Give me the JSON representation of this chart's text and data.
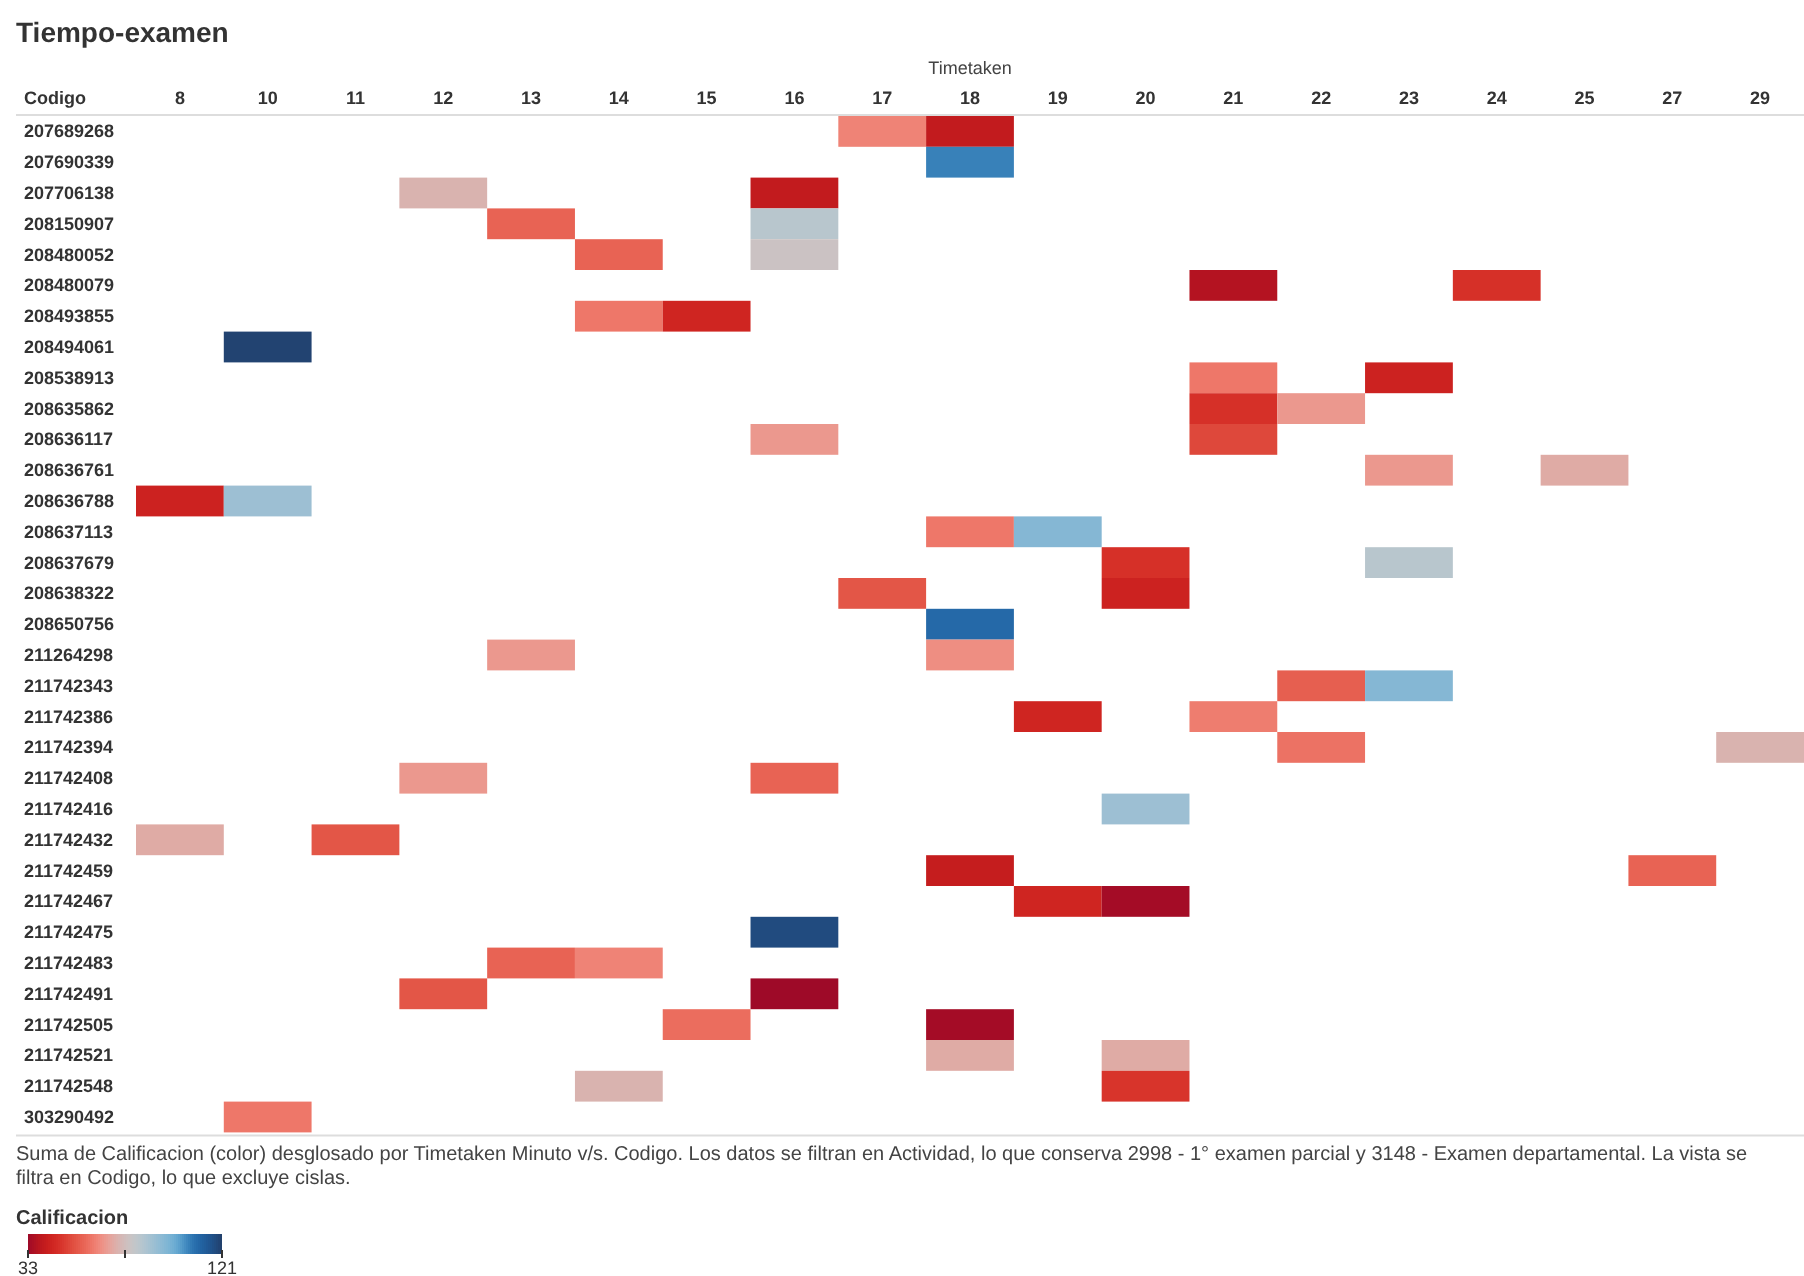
{
  "chart_data": {
    "type": "heatmap",
    "title": "Tiempo-examen",
    "xlabel": "Timetaken",
    "ylabel": "Codigo",
    "clabel": "Calificacion",
    "annotations": [
      "Suma de Calificacion (color) desglosado por Timetaken Minuto v/s. Codigo. Los datos se filtran en Actividad, lo que conserva 2998 - 1° examen parcial y 3148 - Examen departamental. La vista se filtra en Codigo, lo que excluye cislas."
    ],
    "categories": [
      "8",
      "10",
      "11",
      "12",
      "13",
      "14",
      "15",
      "16",
      "17",
      "18",
      "19",
      "20",
      "21",
      "22",
      "23",
      "24",
      "25",
      "27",
      "29"
    ],
    "y_categories": [
      "207689268",
      "207690339",
      "207706138",
      "208150907",
      "208480052",
      "208480079",
      "208493855",
      "208494061",
      "208538913",
      "208635862",
      "208636117",
      "208636761",
      "208636788",
      "208637113",
      "208637679",
      "208638322",
      "208650756",
      "211264298",
      "211742343",
      "211742386",
      "211742394",
      "211742408",
      "211742416",
      "211742432",
      "211742459",
      "211742467",
      "211742475",
      "211742483",
      "211742491",
      "211742505",
      "211742521",
      "211742548",
      "303290492"
    ],
    "clim": [
      33,
      121
    ],
    "cticks": [
      33,
      {
        "value": 77,
        "label": null
      },
      121
    ],
    "cells": [
      [
        null,
        null,
        null,
        null,
        null,
        null,
        null,
        null,
        64,
        40,
        null,
        null,
        null,
        null,
        null,
        null,
        null,
        null,
        null
      ],
      [
        null,
        null,
        null,
        null,
        null,
        null,
        null,
        null,
        null,
        106,
        null,
        null,
        null,
        null,
        null,
        null,
        null,
        null,
        null
      ],
      [
        null,
        null,
        null,
        74,
        null,
        null,
        null,
        40,
        null,
        null,
        null,
        null,
        null,
        null,
        null,
        null,
        null,
        null,
        null
      ],
      [
        null,
        null,
        null,
        null,
        58,
        null,
        null,
        84,
        null,
        null,
        null,
        null,
        null,
        null,
        null,
        null,
        null,
        null,
        null
      ],
      [
        null,
        null,
        null,
        null,
        null,
        58,
        null,
        79,
        null,
        null,
        null,
        null,
        null,
        null,
        null,
        null,
        null,
        null,
        null
      ],
      [
        null,
        null,
        null,
        null,
        null,
        null,
        null,
        null,
        null,
        null,
        null,
        null,
        37,
        null,
        null,
        47,
        null,
        null,
        null
      ],
      [
        null,
        null,
        null,
        null,
        null,
        62,
        44,
        null,
        null,
        null,
        null,
        null,
        null,
        null,
        null,
        null,
        null,
        null,
        null
      ],
      [
        null,
        120,
        null,
        null,
        null,
        null,
        null,
        null,
        null,
        null,
        null,
        null,
        null,
        null,
        null,
        null,
        null,
        null,
        null
      ],
      [
        null,
        null,
        null,
        null,
        null,
        null,
        null,
        null,
        null,
        null,
        null,
        null,
        62,
        null,
        43,
        null,
        null,
        null,
        null
      ],
      [
        null,
        null,
        null,
        null,
        null,
        null,
        null,
        null,
        null,
        null,
        null,
        null,
        47,
        68,
        null,
        null,
        null,
        null,
        null
      ],
      [
        null,
        null,
        null,
        null,
        null,
        null,
        null,
        68,
        null,
        null,
        null,
        null,
        52,
        null,
        null,
        null,
        null,
        null,
        null
      ],
      [
        null,
        null,
        null,
        null,
        null,
        null,
        null,
        null,
        null,
        null,
        null,
        null,
        null,
        null,
        68,
        null,
        72,
        null,
        null
      ],
      [
        43,
        90,
        null,
        null,
        null,
        null,
        null,
        null,
        null,
        null,
        null,
        null,
        null,
        null,
        null,
        null,
        null,
        null,
        null
      ],
      [
        null,
        null,
        null,
        null,
        null,
        null,
        null,
        null,
        null,
        62,
        95,
        null,
        null,
        null,
        null,
        null,
        null,
        null,
        null
      ],
      [
        null,
        null,
        null,
        null,
        null,
        null,
        null,
        null,
        null,
        null,
        null,
        47,
        null,
        null,
        84,
        null,
        null,
        null,
        null
      ],
      [
        null,
        null,
        null,
        null,
        null,
        null,
        null,
        null,
        55,
        null,
        null,
        43,
        null,
        null,
        null,
        null,
        null,
        null,
        null
      ],
      [
        null,
        null,
        null,
        null,
        null,
        null,
        null,
        null,
        null,
        110,
        null,
        null,
        null,
        null,
        null,
        null,
        null,
        null,
        null
      ],
      [
        null,
        null,
        null,
        null,
        68,
        null,
        null,
        null,
        null,
        66,
        null,
        null,
        null,
        null,
        null,
        null,
        null,
        null,
        null
      ],
      [
        null,
        null,
        null,
        null,
        null,
        null,
        null,
        null,
        null,
        null,
        null,
        null,
        null,
        57,
        95,
        null,
        null,
        null,
        null
      ],
      [
        null,
        null,
        null,
        null,
        null,
        null,
        null,
        null,
        null,
        null,
        44,
        null,
        63,
        null,
        null,
        null,
        null,
        null,
        null
      ],
      [
        null,
        null,
        null,
        null,
        null,
        null,
        null,
        null,
        null,
        null,
        null,
        null,
        null,
        61,
        null,
        null,
        null,
        null,
        74
      ],
      [
        null,
        null,
        null,
        68,
        null,
        null,
        null,
        58,
        null,
        null,
        null,
        null,
        null,
        null,
        null,
        null,
        null,
        null,
        null
      ],
      [
        null,
        null,
        null,
        null,
        null,
        null,
        null,
        null,
        null,
        null,
        null,
        90,
        null,
        null,
        null,
        null,
        null,
        null,
        null
      ],
      [
        72,
        null,
        55,
        null,
        null,
        null,
        null,
        null,
        null,
        null,
        null,
        null,
        null,
        null,
        null,
        null,
        null,
        null,
        null
      ],
      [
        null,
        null,
        null,
        null,
        null,
        null,
        null,
        null,
        null,
        41,
        null,
        null,
        null,
        null,
        null,
        null,
        null,
        58,
        null
      ],
      [
        null,
        null,
        null,
        null,
        null,
        null,
        null,
        null,
        null,
        null,
        44,
        34,
        null,
        null,
        null,
        null,
        null,
        null,
        null
      ],
      [
        null,
        null,
        null,
        null,
        null,
        null,
        null,
        118,
        null,
        null,
        null,
        null,
        null,
        null,
        null,
        null,
        null,
        null,
        null
      ],
      [
        null,
        null,
        null,
        null,
        58,
        64,
        null,
        null,
        null,
        null,
        null,
        null,
        null,
        null,
        null,
        null,
        null,
        null,
        null
      ],
      [
        null,
        null,
        null,
        55,
        null,
        null,
        null,
        33,
        null,
        null,
        null,
        null,
        null,
        null,
        null,
        null,
        null,
        null,
        null
      ],
      [
        null,
        null,
        null,
        null,
        null,
        null,
        60,
        null,
        null,
        34,
        null,
        null,
        null,
        null,
        null,
        null,
        null,
        null,
        null
      ],
      [
        null,
        null,
        null,
        null,
        null,
        null,
        null,
        null,
        null,
        72,
        null,
        72,
        null,
        null,
        null,
        null,
        null,
        null,
        null
      ],
      [
        null,
        null,
        null,
        null,
        null,
        74,
        null,
        null,
        null,
        null,
        null,
        48,
        null,
        null,
        null,
        null,
        null,
        null,
        null
      ],
      [
        null,
        62,
        null,
        null,
        null,
        null,
        null,
        null,
        null,
        null,
        null,
        null,
        null,
        null,
        null,
        null,
        null,
        null,
        null
      ]
    ]
  }
}
